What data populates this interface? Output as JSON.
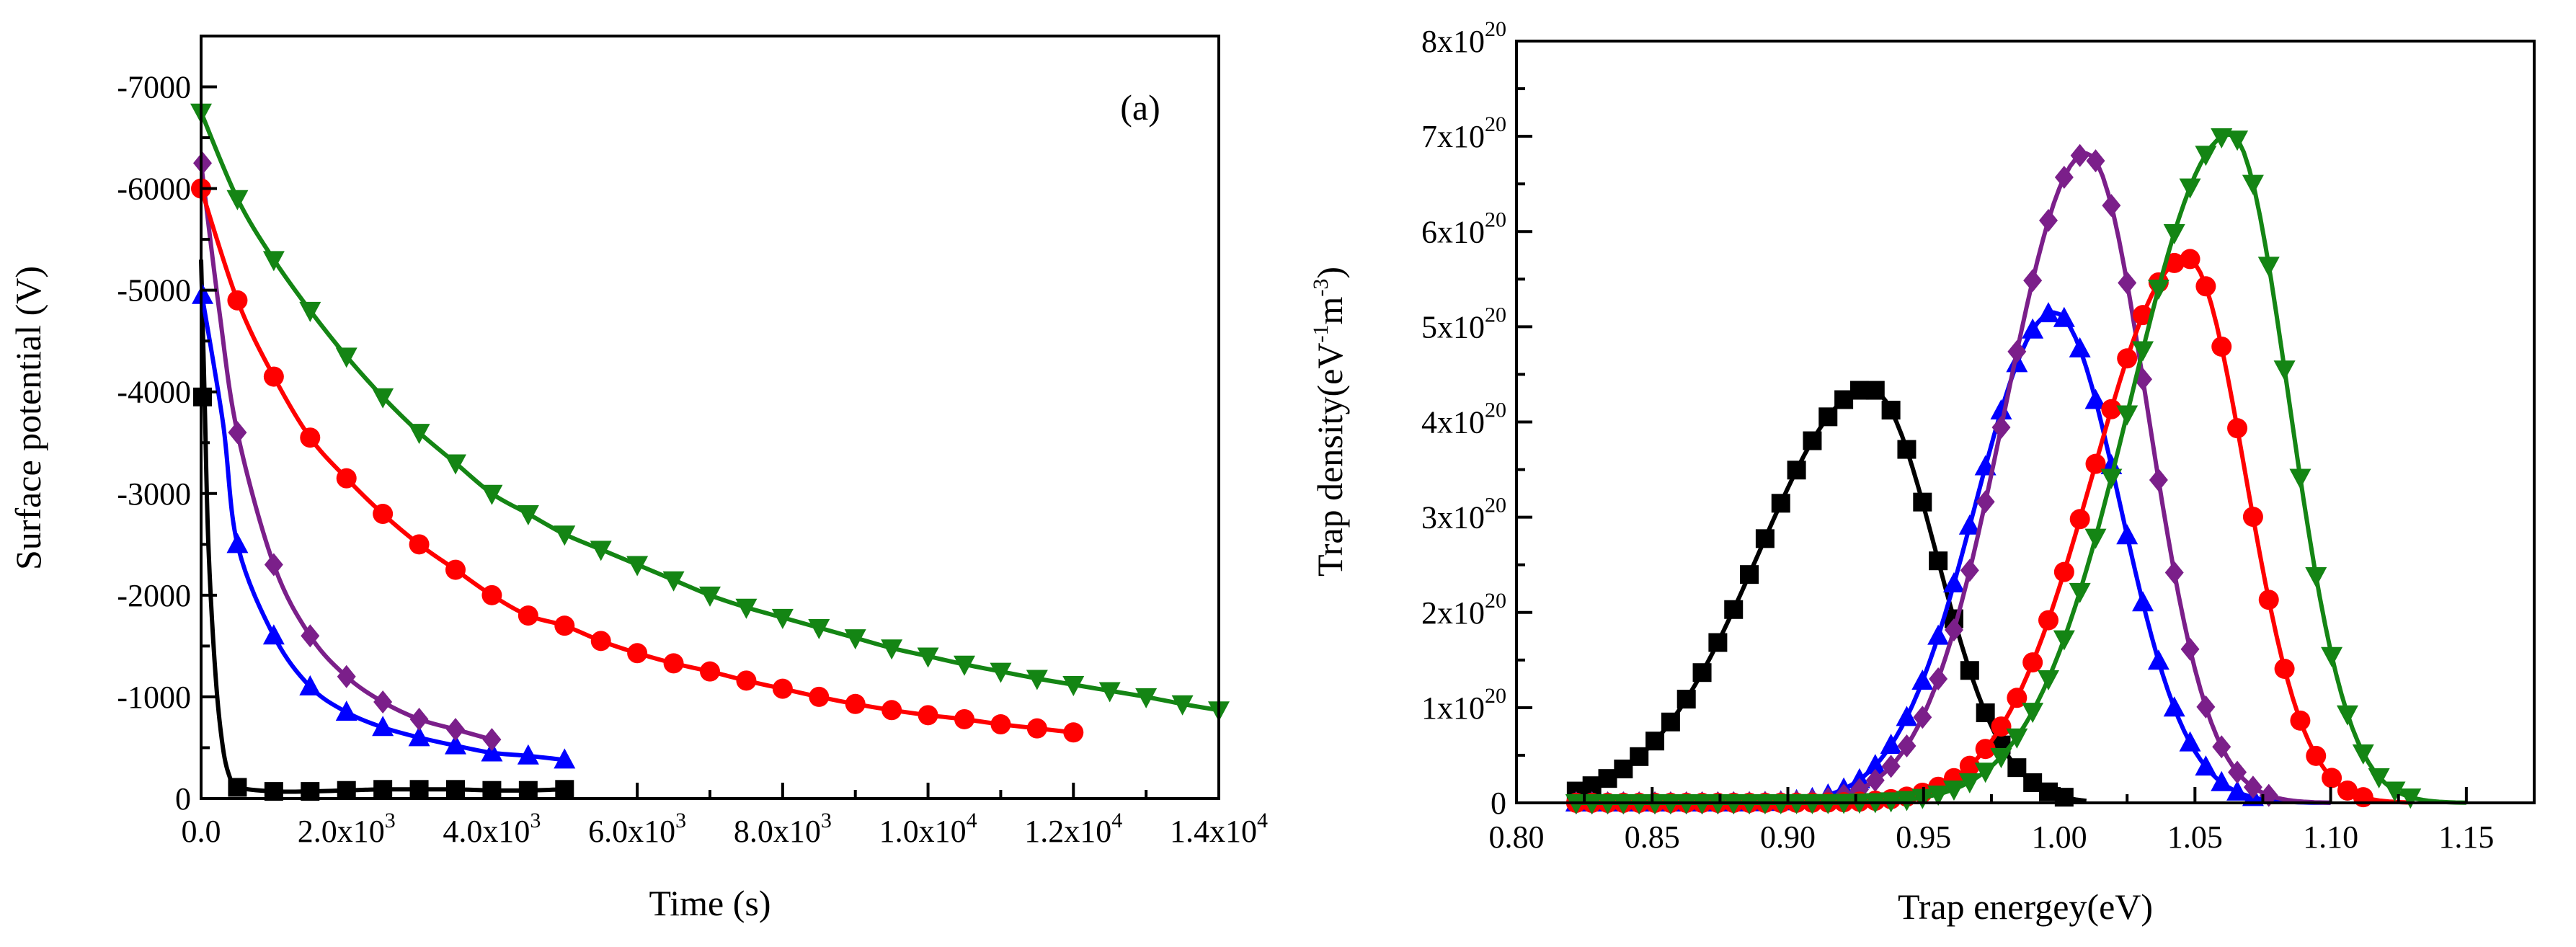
{
  "chart_data": [
    {
      "type": "line",
      "panel_label": "(a)",
      "xlabel": "Time (s)",
      "ylabel": "Surface potential (V)",
      "xlim": [
        0,
        14000
      ],
      "ylim": [
        0,
        -7500
      ],
      "y_ticks": [
        0,
        -1000,
        -2000,
        -3000,
        -4000,
        -5000,
        -6000,
        -7000
      ],
      "y_tick_labels": [
        "0",
        "-1000",
        "-2000",
        "-3000",
        "-4000",
        "-5000",
        "-6000",
        "-7000"
      ],
      "x_ticks": [
        {
          "value": 0,
          "mantissa": "0.0",
          "exp": ""
        },
        {
          "value": 2000,
          "mantissa": "2.0x10",
          "exp": "3"
        },
        {
          "value": 4000,
          "mantissa": "4.0x10",
          "exp": "3"
        },
        {
          "value": 6000,
          "mantissa": "6.0x10",
          "exp": "3"
        },
        {
          "value": 8000,
          "mantissa": "8.0x10",
          "exp": "3"
        },
        {
          "value": 10000,
          "mantissa": "1.0x10",
          "exp": "4"
        },
        {
          "value": 12000,
          "mantissa": "1.2x10",
          "exp": "4"
        },
        {
          "value": 14000,
          "mantissa": "1.4x10",
          "exp": "4"
        }
      ],
      "series": [
        {
          "name": "black",
          "color": "#000000",
          "marker": "square",
          "x": [
            0,
            50,
            100,
            200,
            300,
            400,
            500,
            1000,
            1500,
            2000,
            2500,
            3000,
            3500,
            4000,
            4500,
            5000
          ],
          "y": [
            -5300,
            -3900,
            -2500,
            -1200,
            -500,
            -200,
            -110,
            -70,
            -70,
            -80,
            -90,
            -90,
            -90,
            -80,
            -80,
            -90
          ],
          "markers": [
            [
              20,
              -3950
            ],
            [
              500,
              -110
            ],
            [
              1000,
              -70
            ],
            [
              1500,
              -70
            ],
            [
              2000,
              -80
            ],
            [
              2500,
              -90
            ],
            [
              3000,
              -90
            ],
            [
              3500,
              -90
            ],
            [
              4000,
              -80
            ],
            [
              4500,
              -80
            ],
            [
              5000,
              -90
            ]
          ]
        },
        {
          "name": "blue",
          "color": "#0000ff",
          "marker": "triangle-up",
          "x": [
            0,
            300,
            500,
            1000,
            1500,
            2000,
            2500,
            3000,
            3500,
            4000,
            4500,
            5000
          ],
          "y": [
            -5000,
            -3700,
            -2500,
            -1600,
            -1100,
            -850,
            -700,
            -600,
            -520,
            -450,
            -420,
            -380
          ],
          "markers": [
            [
              20,
              -4950
            ],
            [
              500,
              -2500
            ],
            [
              1000,
              -1600
            ],
            [
              1500,
              -1100
            ],
            [
              2000,
              -850
            ],
            [
              2500,
              -700
            ],
            [
              3000,
              -600
            ],
            [
              3500,
              -520
            ],
            [
              4000,
              -450
            ],
            [
              4500,
              -420
            ],
            [
              5000,
              -380
            ]
          ]
        },
        {
          "name": "purple",
          "color": "#7b1f8a",
          "marker": "diamond",
          "x": [
            0,
            250,
            500,
            1000,
            1500,
            2000,
            2500,
            3000,
            3500,
            4000
          ],
          "y": [
            -6250,
            -4800,
            -3600,
            -2300,
            -1600,
            -1200,
            -950,
            -780,
            -680,
            -580
          ],
          "markers": [
            [
              20,
              -6250
            ],
            [
              500,
              -3600
            ],
            [
              1000,
              -2300
            ],
            [
              1500,
              -1600
            ],
            [
              2000,
              -1200
            ],
            [
              2500,
              -950
            ],
            [
              3000,
              -780
            ],
            [
              3500,
              -680
            ],
            [
              4000,
              -580
            ]
          ]
        },
        {
          "name": "red",
          "color": "#ff0000",
          "marker": "circle",
          "x": [
            0,
            500,
            1000,
            1500,
            2000,
            2500,
            3000,
            3500,
            4000,
            4500,
            5000,
            5500,
            6000,
            6500,
            7000,
            7500,
            8000,
            8500,
            9000,
            9500,
            10000,
            10500,
            11000,
            11500,
            12000
          ],
          "y": [
            -6000,
            -4900,
            -4150,
            -3550,
            -3150,
            -2800,
            -2500,
            -2250,
            -2000,
            -1800,
            -1700,
            -1550,
            -1430,
            -1330,
            -1250,
            -1160,
            -1080,
            -1000,
            -930,
            -870,
            -820,
            -780,
            -730,
            -690,
            -650
          ]
        },
        {
          "name": "green",
          "color": "#148514",
          "marker": "triangle-down",
          "x": [
            0,
            500,
            1000,
            1500,
            2000,
            2500,
            3000,
            3500,
            4000,
            4500,
            5000,
            5500,
            6000,
            6500,
            7000,
            7500,
            8000,
            8500,
            9000,
            9500,
            10000,
            10500,
            11000,
            11500,
            12000,
            12500,
            13000,
            13500,
            14000
          ],
          "y": [
            -6750,
            -5900,
            -5300,
            -4800,
            -4350,
            -3950,
            -3600,
            -3300,
            -3000,
            -2800,
            -2600,
            -2450,
            -2300,
            -2150,
            -2000,
            -1880,
            -1780,
            -1680,
            -1580,
            -1480,
            -1400,
            -1320,
            -1250,
            -1180,
            -1120,
            -1060,
            -1000,
            -930,
            -870
          ]
        }
      ]
    },
    {
      "type": "line",
      "xlabel": "Trap energey(eV)",
      "ylabel_main": "Trap density(eV",
      "ylabel_sup1": "-1",
      "ylabel_mid": "m",
      "ylabel_sup2": "-3",
      "ylabel_end": ")",
      "xlim": [
        0.8,
        1.175
      ],
      "ylim": [
        0,
        8e+20
      ],
      "x_ticks": [
        0.8,
        0.85,
        0.9,
        0.95,
        1.0,
        1.05,
        1.1,
        1.15
      ],
      "x_tick_labels": [
        "0.80",
        "0.85",
        "0.90",
        "0.95",
        "1.00",
        "1.05",
        "1.10",
        "1.15"
      ],
      "y_ticks": [
        {
          "value": 0,
          "mantissa": "0",
          "exp": ""
        },
        {
          "value": 1e+20,
          "mantissa": "1x10",
          "exp": "20"
        },
        {
          "value": 2e+20,
          "mantissa": "2x10",
          "exp": "20"
        },
        {
          "value": 3e+20,
          "mantissa": "3x10",
          "exp": "20"
        },
        {
          "value": 4e+20,
          "mantissa": "4x10",
          "exp": "20"
        },
        {
          "value": 5e+20,
          "mantissa": "5x10",
          "exp": "20"
        },
        {
          "value": 6e+20,
          "mantissa": "6x10",
          "exp": "20"
        },
        {
          "value": 7e+20,
          "mantissa": "7x10",
          "exp": "20"
        },
        {
          "value": 8e+20,
          "mantissa": "8x10",
          "exp": "20"
        }
      ],
      "series": [
        {
          "name": "black",
          "color": "#000000",
          "marker": "square",
          "peak_x": 0.93,
          "peak_y": 4.35e+20,
          "sigma_left": 0.0405,
          "sigma_right": 0.0245,
          "x_start": 0.822,
          "x_end": 1.01,
          "marker_step": 0.0058
        },
        {
          "name": "blue",
          "color": "#0000ff",
          "marker": "triangle-up",
          "peak_x": 0.998,
          "peak_y": 5.15e+20,
          "sigma_left": 0.029,
          "sigma_right": 0.0245,
          "x_start": 0.822,
          "x_end": 1.1,
          "marker_step": 0.0058
        },
        {
          "name": "purple",
          "color": "#7b1f8a",
          "marker": "diamond",
          "peak_x": 1.01,
          "peak_y": 6.82e+20,
          "sigma_left": 0.03,
          "sigma_right": 0.0225,
          "x_start": 0.822,
          "x_end": 1.1,
          "marker_step": 0.0058
        },
        {
          "name": "red",
          "color": "#ff0000",
          "marker": "circle",
          "peak_x": 1.047,
          "peak_y": 5.72e+20,
          "sigma_left": 0.0345,
          "sigma_right": 0.0215,
          "x_start": 0.822,
          "x_end": 1.13,
          "marker_step": 0.0058
        },
        {
          "name": "green",
          "color": "#148514",
          "marker": "triangle-down",
          "peak_x": 1.063,
          "peak_y": 7.02e+20,
          "sigma_left": 0.0365,
          "sigma_right": 0.0215,
          "x_start": 0.822,
          "x_end": 1.15,
          "marker_step": 0.0058
        }
      ]
    }
  ]
}
